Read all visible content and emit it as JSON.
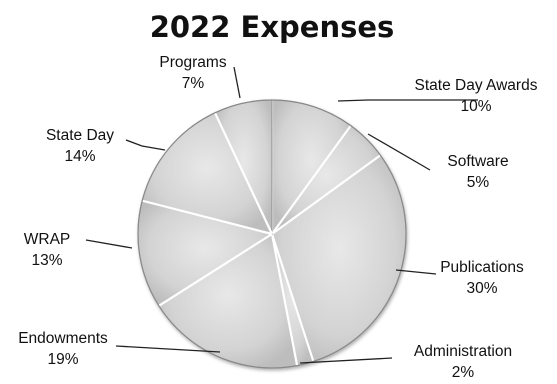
{
  "chart_data": {
    "type": "pie",
    "title": "2022 Expenses",
    "slices": [
      {
        "label": "State Day Awards",
        "pct": "10%",
        "value": 10
      },
      {
        "label": "Software",
        "pct": "5%",
        "value": 5
      },
      {
        "label": "Publications",
        "pct": "30%",
        "value": 30
      },
      {
        "label": "Administration",
        "pct": "2%",
        "value": 2
      },
      {
        "label": "Endowments",
        "pct": "19%",
        "value": 19
      },
      {
        "label": "WRAP",
        "pct": "13%",
        "value": 13
      },
      {
        "label": "State Day",
        "pct": "14%",
        "value": 14
      },
      {
        "label": "Programs",
        "pct": "7%",
        "value": 7
      }
    ],
    "legend": "none",
    "colors": {
      "slice_fill": "#d6d6d6",
      "slice_edge": "#8a8a8a",
      "text": "#111111"
    }
  }
}
